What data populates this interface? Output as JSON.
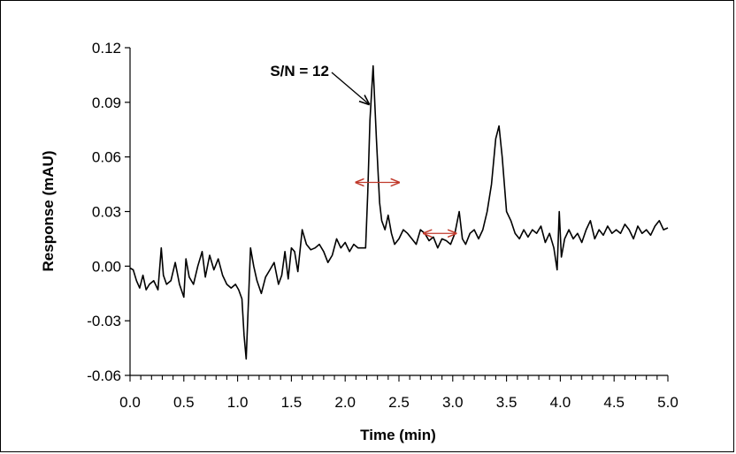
{
  "chart_data": {
    "type": "line",
    "title": "",
    "xlabel": "Time (min)",
    "ylabel": "Response (mAU)",
    "xlim": [
      0.0,
      5.0
    ],
    "ylim": [
      -0.06,
      0.12
    ],
    "x_ticks": [
      "0.0",
      "0.5",
      "1.0",
      "1.5",
      "2.0",
      "2.5",
      "3.0",
      "3.5",
      "4.0",
      "4.5",
      "5.0"
    ],
    "y_ticks": [
      "-0.06",
      "-0.03",
      "0.00",
      "0.03",
      "0.06",
      "0.09",
      "0.12"
    ],
    "grid": false,
    "legend": "none",
    "line_color": "#000000",
    "annotation_color": "#c0392b",
    "series": [
      {
        "x": [
          0.0,
          0.03,
          0.06,
          0.09,
          0.12,
          0.15,
          0.18,
          0.22,
          0.26,
          0.29,
          0.31,
          0.34,
          0.38,
          0.42,
          0.46,
          0.5,
          0.52,
          0.55,
          0.59,
          0.63,
          0.67,
          0.7,
          0.74,
          0.78,
          0.82,
          0.86,
          0.9,
          0.94,
          0.98,
          1.01,
          1.04,
          1.06,
          1.08,
          1.1,
          1.12,
          1.15,
          1.18,
          1.22,
          1.26,
          1.3,
          1.34,
          1.38,
          1.41,
          1.44,
          1.47,
          1.5,
          1.53,
          1.56,
          1.6,
          1.64,
          1.68,
          1.72,
          1.76,
          1.8,
          1.84,
          1.88,
          1.92,
          1.96,
          2.0,
          2.04,
          2.08,
          2.12,
          2.16,
          2.19,
          2.21,
          2.23,
          2.26,
          2.29,
          2.32,
          2.34,
          2.37,
          2.4,
          2.43,
          2.46,
          2.5,
          2.54,
          2.58,
          2.62,
          2.66,
          2.7,
          2.74,
          2.78,
          2.82,
          2.86,
          2.9,
          2.94,
          2.98,
          3.02,
          3.06,
          3.09,
          3.12,
          3.16,
          3.2,
          3.24,
          3.28,
          3.32,
          3.36,
          3.4,
          3.43,
          3.46,
          3.5,
          3.54,
          3.58,
          3.62,
          3.66,
          3.7,
          3.74,
          3.78,
          3.82,
          3.86,
          3.9,
          3.94,
          3.97,
          3.99,
          4.01,
          4.04,
          4.08,
          4.12,
          4.16,
          4.2,
          4.24,
          4.28,
          4.32,
          4.36,
          4.4,
          4.44,
          4.48,
          4.52,
          4.56,
          4.6,
          4.64,
          4.68,
          4.72,
          4.76,
          4.8,
          4.84,
          4.88,
          4.92,
          4.96,
          5.0
        ],
        "y": [
          -0.001,
          -0.002,
          -0.008,
          -0.012,
          -0.005,
          -0.013,
          -0.01,
          -0.008,
          -0.013,
          0.01,
          -0.005,
          -0.01,
          -0.008,
          0.002,
          -0.01,
          -0.017,
          0.004,
          -0.006,
          -0.01,
          0.0,
          0.008,
          -0.006,
          0.006,
          -0.002,
          0.004,
          -0.005,
          -0.01,
          -0.012,
          -0.01,
          -0.013,
          -0.018,
          -0.038,
          -0.051,
          -0.02,
          0.01,
          0.0,
          -0.008,
          -0.015,
          -0.006,
          -0.002,
          0.002,
          -0.01,
          -0.005,
          0.008,
          -0.007,
          0.01,
          0.008,
          -0.003,
          0.02,
          0.012,
          0.009,
          0.01,
          0.012,
          0.008,
          0.002,
          0.006,
          0.015,
          0.01,
          0.013,
          0.008,
          0.012,
          0.01,
          0.01,
          0.01,
          0.04,
          0.08,
          0.11,
          0.07,
          0.035,
          0.025,
          0.02,
          0.028,
          0.018,
          0.012,
          0.015,
          0.02,
          0.018,
          0.015,
          0.012,
          0.02,
          0.018,
          0.014,
          0.016,
          0.01,
          0.015,
          0.014,
          0.012,
          0.018,
          0.03,
          0.015,
          0.012,
          0.018,
          0.02,
          0.015,
          0.02,
          0.03,
          0.045,
          0.07,
          0.077,
          0.06,
          0.03,
          0.025,
          0.018,
          0.015,
          0.02,
          0.016,
          0.02,
          0.018,
          0.022,
          0.013,
          0.018,
          0.01,
          -0.002,
          0.03,
          0.005,
          0.015,
          0.02,
          0.015,
          0.018,
          0.013,
          0.02,
          0.025,
          0.015,
          0.02,
          0.017,
          0.022,
          0.018,
          0.02,
          0.018,
          0.023,
          0.02,
          0.015,
          0.022,
          0.018,
          0.02,
          0.017,
          0.022,
          0.025,
          0.02,
          0.021
        ]
      }
    ],
    "annotations": [
      {
        "text": "S/N = 12",
        "x": 1.85,
        "y": 0.1045,
        "arrow_to": [
          2.22,
          0.089
        ]
      }
    ],
    "double_arrows": [
      {
        "x1": 2.1,
        "x2": 2.5,
        "y": 0.046
      },
      {
        "x1": 2.73,
        "x2": 3.03,
        "y": 0.018
      }
    ]
  }
}
